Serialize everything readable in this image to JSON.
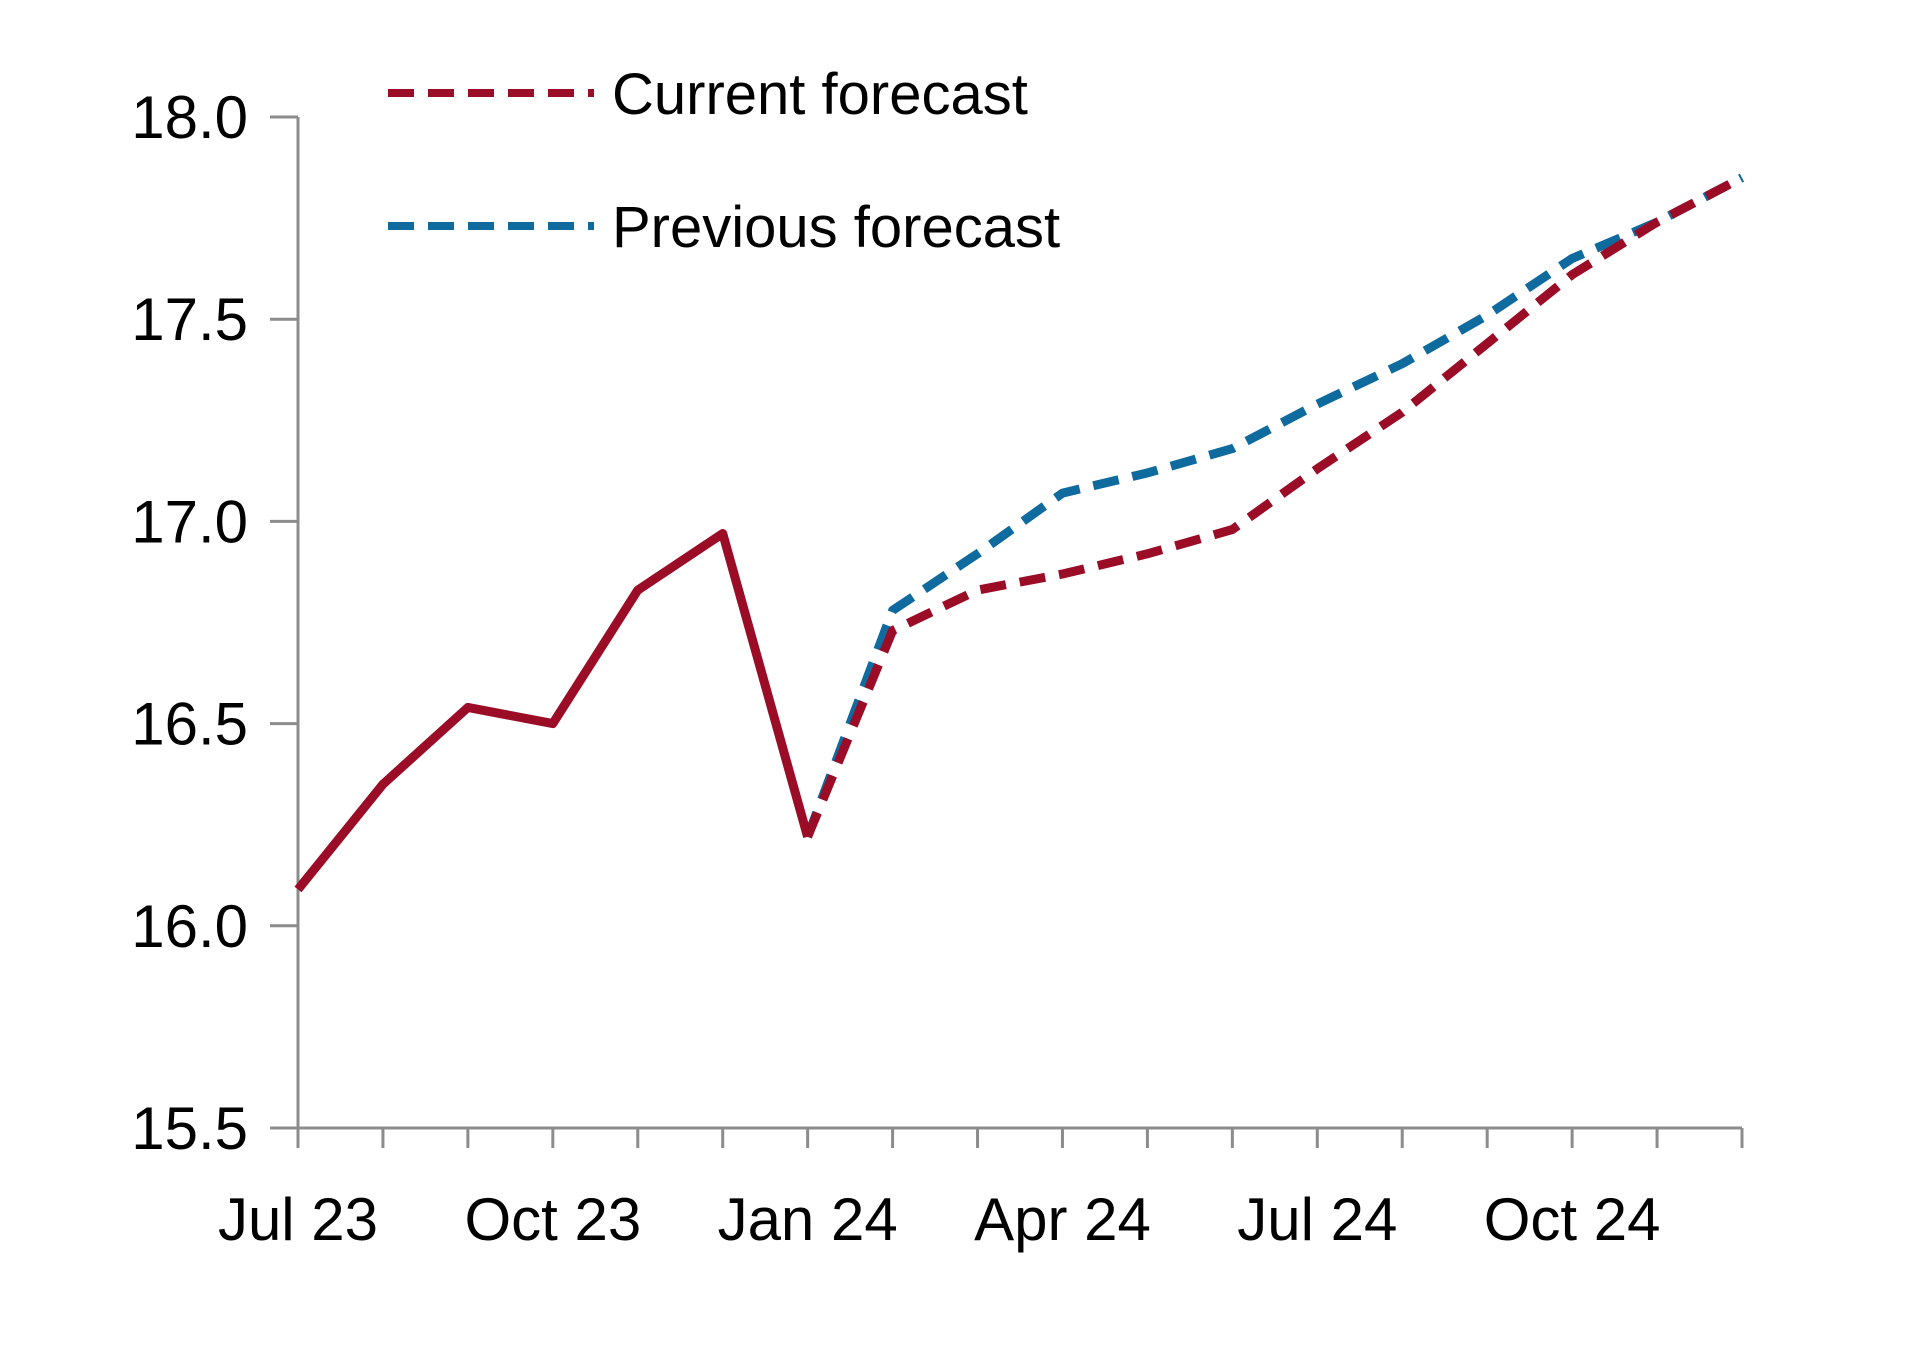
{
  "chart_data": {
    "type": "line",
    "title": "",
    "xlabel": "",
    "ylabel": "",
    "ylim": [
      15.5,
      18.0
    ],
    "y_ticks": [
      "15.5",
      "16.0",
      "16.5",
      "17.0",
      "17.5",
      "18.0"
    ],
    "x_ticks": [
      "Jul 23",
      "Oct 23",
      "Jan 24",
      "Apr 24",
      "Jul 24",
      "Oct 24"
    ],
    "x_tick_months": [
      "2023-07",
      "2023-10",
      "2024-01",
      "2024-04",
      "2024-07",
      "2024-10"
    ],
    "x_range": [
      "2023-07",
      "2024-12"
    ],
    "grid": false,
    "legend_position": "top-left",
    "series": [
      {
        "name": "",
        "style": "solid",
        "color": "#9b0c26",
        "x": [
          "2023-07",
          "2023-08",
          "2023-09",
          "2023-10",
          "2023-11",
          "2023-12",
          "2024-01"
        ],
        "y": [
          16.09,
          16.35,
          16.54,
          16.5,
          16.83,
          16.97,
          16.22
        ]
      },
      {
        "name": "Previous forecast",
        "style": "dashed",
        "color": "#0f6a9e",
        "x": [
          "2024-01",
          "2024-02",
          "2024-03",
          "2024-04",
          "2024-05",
          "2024-06",
          "2024-07",
          "2024-08",
          "2024-09",
          "2024-10",
          "2024-11",
          "2024-12"
        ],
        "y": [
          16.22,
          16.78,
          16.92,
          17.07,
          17.12,
          17.18,
          17.29,
          17.39,
          17.51,
          17.65,
          17.74,
          17.85
        ]
      },
      {
        "name": "Current forecast",
        "style": "dashed",
        "color": "#9b0c26",
        "x": [
          "2024-01",
          "2024-02",
          "2024-03",
          "2024-04",
          "2024-05",
          "2024-06",
          "2024-07",
          "2024-08",
          "2024-09",
          "2024-10",
          "2024-11",
          "2024-12"
        ],
        "y": [
          16.22,
          16.73,
          16.83,
          16.87,
          16.92,
          16.98,
          17.13,
          17.27,
          17.44,
          17.61,
          17.74,
          17.85
        ]
      }
    ],
    "legend": [
      {
        "label": "Current forecast",
        "color": "#9b0c26",
        "style": "dashed"
      },
      {
        "label": "Previous forecast",
        "color": "#0f6a9e",
        "style": "dashed"
      }
    ]
  }
}
